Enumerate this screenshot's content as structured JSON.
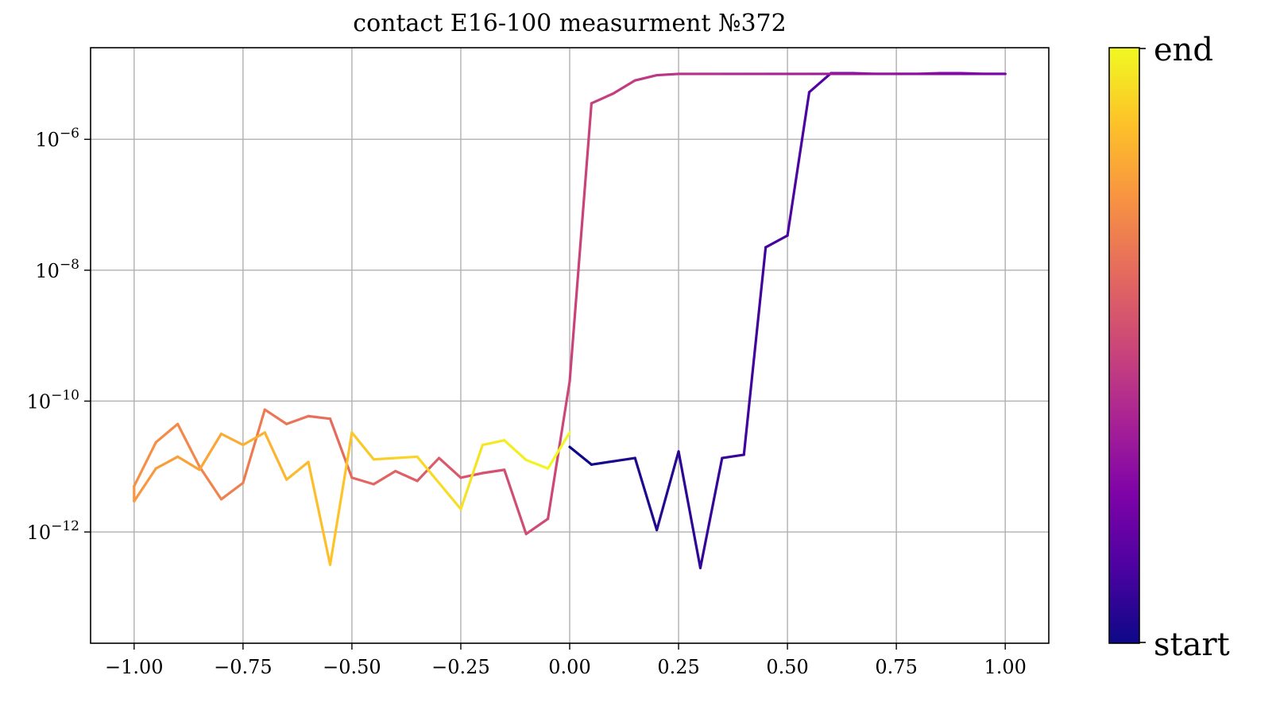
{
  "chart_data": {
    "type": "line",
    "title": "contact E16-100 measurment №372",
    "xlabel": "",
    "ylabel": "",
    "xlim": [
      -1.1,
      1.1
    ],
    "ylim_log10": [
      -13.7,
      -4.6
    ],
    "yscale": "log",
    "grid": true,
    "xticks": [
      "−1.00",
      "−0.75",
      "−0.50",
      "−0.25",
      "0.00",
      "0.25",
      "0.50",
      "0.75",
      "1.00"
    ],
    "xtick_values": [
      -1.0,
      -0.75,
      -0.5,
      -0.25,
      0.0,
      0.25,
      0.5,
      0.75,
      1.0
    ],
    "ytick_exponents": [
      -6,
      -8,
      -10,
      -12
    ],
    "ytick_base": "10",
    "colormap": "plasma",
    "colorbar_labels": {
      "top": "end",
      "bottom": "start"
    },
    "series": [
      {
        "x": [
          0.0,
          0.05,
          0.1,
          0.15,
          0.2,
          0.25,
          0.3,
          0.35,
          0.4,
          0.45,
          0.5,
          0.55,
          0.6,
          0.65,
          0.7,
          0.75,
          0.8,
          0.85,
          0.9,
          0.95,
          1.0,
          0.95,
          0.9,
          0.85,
          0.8,
          0.75,
          0.7,
          0.65,
          0.6,
          0.55,
          0.5,
          0.45,
          0.4,
          0.35,
          0.3,
          0.25,
          0.2,
          0.15,
          0.1,
          0.05,
          0.0,
          -0.05,
          -0.1,
          -0.15,
          -0.2,
          -0.25,
          -0.3,
          -0.35,
          -0.4,
          -0.45,
          -0.5,
          -0.55,
          -0.6,
          -0.65,
          -0.7,
          -0.75,
          -0.8,
          -0.85,
          -0.9,
          -0.95,
          -1.0,
          -1.0,
          -0.95,
          -0.9,
          -0.85,
          -0.8,
          -0.75,
          -0.7,
          -0.65,
          -0.6,
          -0.55,
          -0.5,
          -0.45,
          -0.4,
          -0.35,
          -0.3,
          -0.25,
          -0.2,
          -0.15,
          -0.1,
          -0.05,
          0.0
        ],
        "log10_y": [
          -10.7,
          -10.97,
          -10.92,
          -10.87,
          -11.97,
          -10.77,
          -12.55,
          -10.87,
          -10.82,
          -7.65,
          -7.47,
          -5.28,
          -4.99,
          -4.99,
          -5.0,
          -5.0,
          -5.0,
          -4.99,
          -4.99,
          -5.0,
          -5.0,
          -5.0,
          -5.0,
          -5.0,
          -5.0,
          -5.0,
          -5.0,
          -5.0,
          -5.0,
          -5.0,
          -5.0,
          -5.0,
          -5.0,
          -5.0,
          -5.0,
          -5.0,
          -5.02,
          -5.1,
          -5.3,
          -5.45,
          -9.7,
          -11.8,
          -12.03,
          -11.05,
          -11.1,
          -11.17,
          -10.87,
          -11.22,
          -11.07,
          -11.27,
          -11.17,
          -10.27,
          -10.23,
          -10.35,
          -10.13,
          -11.25,
          -11.5,
          -11.0,
          -10.35,
          -10.63,
          -11.3,
          -11.53,
          -11.03,
          -10.85,
          -11.05,
          -10.5,
          -10.67,
          -10.48,
          -11.2,
          -10.93,
          -12.5,
          -10.48,
          -10.89,
          -10.87,
          -10.85,
          -11.25,
          -11.65,
          -10.67,
          -10.6,
          -10.9,
          -11.03,
          -10.48,
          -12.25
        ],
        "log10_y_note": ""
      }
    ]
  }
}
